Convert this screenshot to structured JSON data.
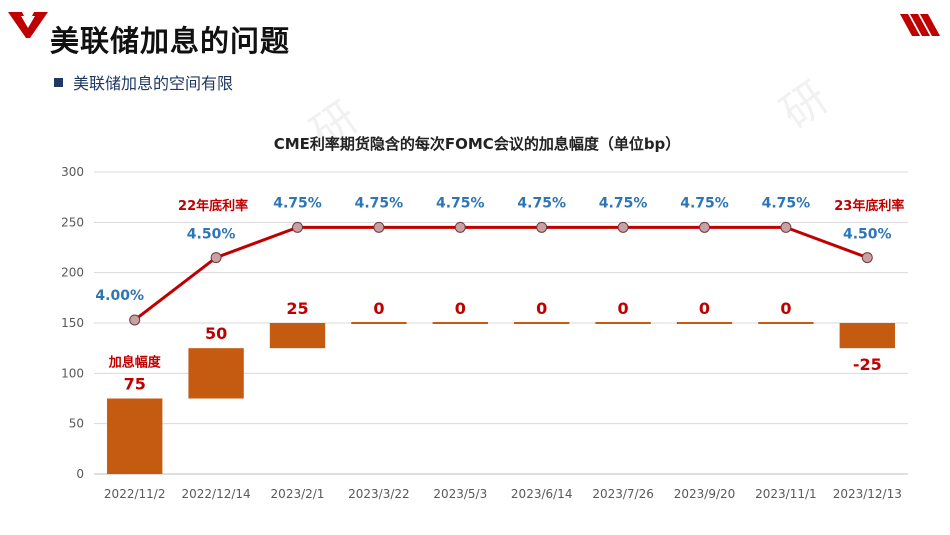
{
  "page": {
    "title": "美联储加息的问题",
    "bullet": "美联储加息的空间有限"
  },
  "colors": {
    "accent": "#c00000",
    "bar": "#c55a11",
    "line": "#c00000",
    "rate_label": "#2e75b6",
    "marker_fill": "#c9a0a4",
    "heading": "#1f3864"
  },
  "chart_data": {
    "type": "bar+line",
    "title": "CME利率期货隐含的每次FOMC会议的加息幅度（单位bp）",
    "categories": [
      "2022/11/2",
      "2022/12/14",
      "2023/2/1",
      "2023/3/22",
      "2023/5/3",
      "2023/6/14",
      "2023/7/26",
      "2023/9/20",
      "2023/11/1",
      "2023/12/13"
    ],
    "ylim": [
      0,
      300
    ],
    "yticks": [
      0,
      50,
      100,
      150,
      200,
      250,
      300
    ],
    "series": [
      {
        "name": "加息幅度",
        "type": "waterfall-bar",
        "values": [
          75,
          50,
          25,
          0,
          0,
          0,
          0,
          0,
          0,
          -25
        ],
        "labels": [
          "75",
          "50",
          "25",
          "0",
          "0",
          "0",
          "0",
          "0",
          "0",
          "-25"
        ]
      },
      {
        "name": "利率",
        "type": "line",
        "values": [
          153,
          215,
          245,
          245,
          245,
          245,
          245,
          245,
          245,
          215
        ],
        "labels": [
          "4.00%",
          "4.50%",
          "4.75%",
          "4.75%",
          "4.75%",
          "4.75%",
          "4.75%",
          "4.75%",
          "4.75%",
          "4.50%"
        ]
      }
    ],
    "annotations": [
      {
        "text": "加息幅度",
        "index": 0
      },
      {
        "text": "22年底利率",
        "index": 1
      },
      {
        "text": "23年底利率",
        "index": 9
      }
    ]
  }
}
